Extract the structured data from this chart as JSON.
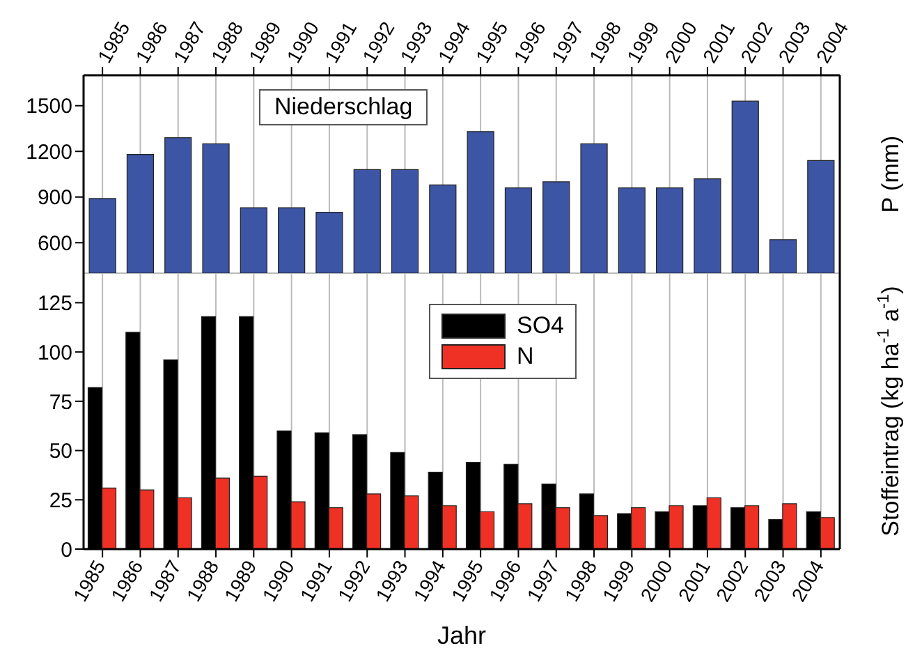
{
  "chart_data": [
    {
      "type": "bar",
      "ylabel": "P (mm)",
      "annotations": [
        "Niederschlag"
      ],
      "categories": [
        "1985",
        "1986",
        "1987",
        "1988",
        "1989",
        "1990",
        "1991",
        "1992",
        "1993",
        "1994",
        "1995",
        "1996",
        "1997",
        "1998",
        "1999",
        "2000",
        "2001",
        "2002",
        "2003",
        "2004"
      ],
      "series": [
        {
          "color": "#3d55a5",
          "values": [
            890,
            1180,
            1290,
            1250,
            830,
            830,
            800,
            1080,
            1080,
            980,
            1330,
            960,
            1000,
            1250,
            960,
            960,
            1020,
            1530,
            620,
            1140
          ]
        }
      ],
      "ylim": [
        400,
        1700
      ],
      "yticks": [
        600,
        900,
        1200,
        1500
      ],
      "grid": true,
      "legend": false
    },
    {
      "type": "bar",
      "xlabel": "Jahr",
      "ylabel": "Stoffeintrag (kg ha$^{-1}$ a$^{-1}$)",
      "categories": [
        "1985",
        "1986",
        "1987",
        "1988",
        "1989",
        "1990",
        "1991",
        "1992",
        "1993",
        "1994",
        "1995",
        "1996",
        "1997",
        "1998",
        "1999",
        "2000",
        "2001",
        "2002",
        "2003",
        "2004"
      ],
      "series": [
        {
          "name": "SO4",
          "color": "#000000",
          "values": [
            82,
            110,
            96,
            118,
            118,
            60,
            59,
            58,
            49,
            39,
            44,
            43,
            33,
            28,
            18,
            19,
            22,
            21,
            15,
            19
          ]
        },
        {
          "name": "N",
          "color": "#ee3124",
          "values": [
            31,
            30,
            26,
            36,
            37,
            24,
            21,
            28,
            27,
            22,
            19,
            23,
            21,
            17,
            21,
            22,
            26,
            22,
            23,
            16
          ]
        }
      ],
      "ylim": [
        0,
        140
      ],
      "yticks": [
        0,
        25,
        50,
        75,
        100,
        125
      ],
      "grid": true,
      "legend": "top"
    }
  ]
}
